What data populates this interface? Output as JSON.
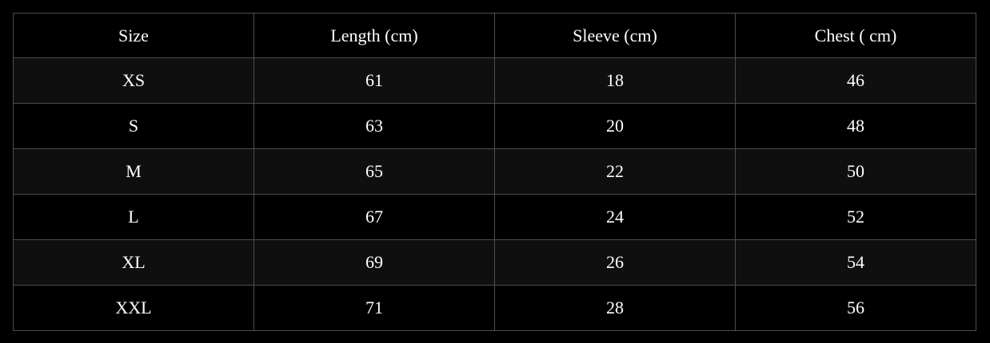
{
  "table": {
    "header": [
      "Size",
      "Length (cm)",
      "Sleeve (cm)",
      "Chest ( cm)"
    ],
    "rows": [
      [
        "XS",
        61,
        18,
        46
      ],
      [
        "S",
        63,
        20,
        48
      ],
      [
        "M",
        65,
        22,
        50
      ],
      [
        "L",
        67,
        24,
        52
      ],
      [
        "XL",
        69,
        26,
        54
      ],
      [
        "XXL",
        71,
        28,
        56
      ]
    ]
  }
}
